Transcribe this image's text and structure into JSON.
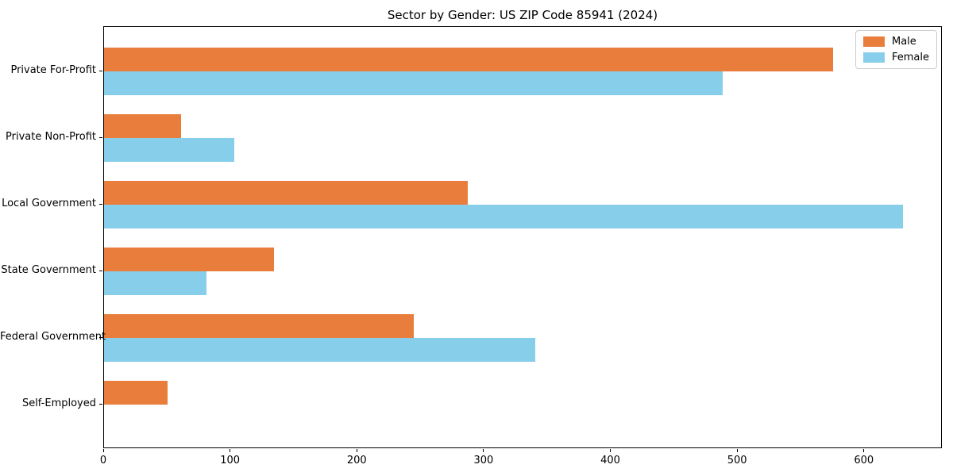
{
  "figure": {
    "background": "#ffffff"
  },
  "chart_data": {
    "type": "bar",
    "orientation": "horizontal",
    "title": "Sector by Gender: US ZIP Code 85941 (2024)",
    "categories": [
      "Private For-Profit",
      "Private Non-Profit",
      "Local Government",
      "State Government",
      "Federal Government",
      "Self-Employed"
    ],
    "series": [
      {
        "name": "Male",
        "color": "#E87D3C",
        "values": [
          575,
          61,
          287,
          134,
          244,
          50
        ]
      },
      {
        "name": "Female",
        "color": "#87CEEB",
        "values": [
          488,
          103,
          630,
          81,
          340,
          0
        ]
      }
    ],
    "xlabel": "",
    "ylabel": "",
    "xlim": [
      0,
      661.5
    ],
    "xticks": [
      0,
      100,
      200,
      300,
      400,
      500,
      600
    ],
    "grid": false,
    "legend": {
      "position": "upper right",
      "entries": [
        "Male",
        "Female"
      ]
    },
    "axis_color": "#000000",
    "text_color": "#000000"
  }
}
